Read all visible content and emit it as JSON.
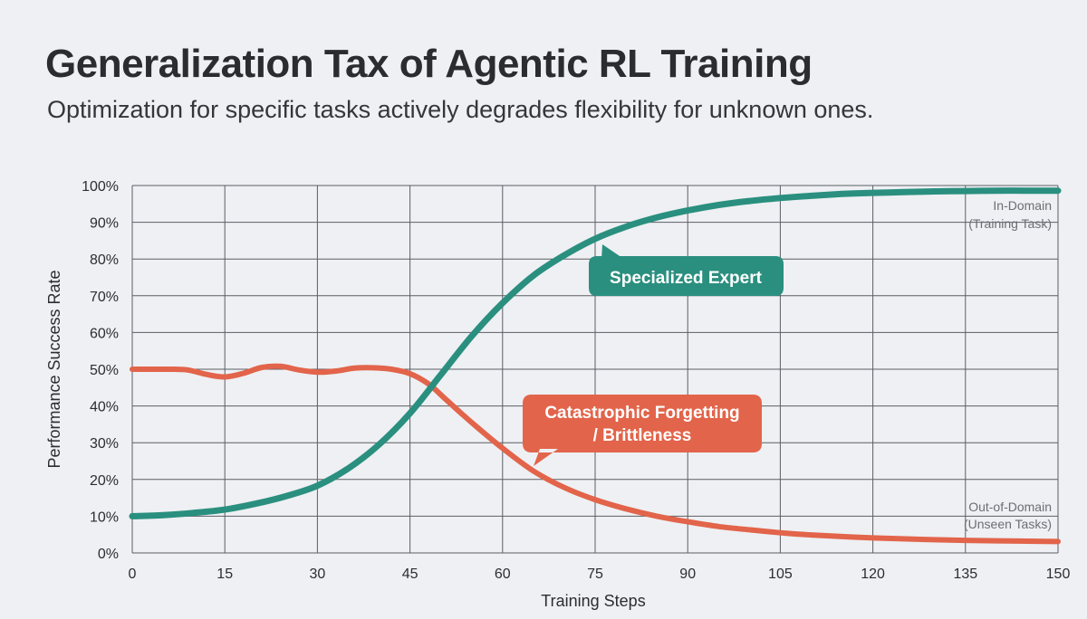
{
  "title": "Generalization Tax of Agentic RL Training",
  "subtitle": "Optimization for specific tasks actively degrades flexibility for unknown ones.",
  "chart_data": {
    "type": "line",
    "xlabel": "Training Steps",
    "ylabel": "Performance Success Rate",
    "xlim": [
      0,
      150
    ],
    "ylim": [
      0,
      100
    ],
    "x_ticks": [
      0,
      15,
      30,
      45,
      60,
      75,
      90,
      105,
      120,
      135,
      150
    ],
    "y_ticks": [
      "0%",
      "10%",
      "20%",
      "30%",
      "40%",
      "50%",
      "60%",
      "70%",
      "80%",
      "90%",
      "100%"
    ],
    "grid": true,
    "series": [
      {
        "name": "In-Domain (Training Task)",
        "label_lines": [
          "In-Domain",
          "(Training Task)"
        ],
        "color": "#2a8f7f",
        "x": [
          0,
          5,
          10,
          15,
          20,
          25,
          30,
          35,
          40,
          45,
          50,
          55,
          60,
          65,
          70,
          75,
          80,
          85,
          90,
          95,
          100,
          105,
          110,
          115,
          120,
          125,
          130,
          135,
          140,
          145,
          150
        ],
        "y": [
          10,
          10.3,
          10.9,
          11.8,
          13.4,
          15.5,
          18.3,
          23,
          29.5,
          38,
          48.5,
          59,
          68,
          75.5,
          81,
          85.5,
          88.8,
          91.3,
          93.2,
          94.7,
          95.8,
          96.6,
          97.2,
          97.7,
          98,
          98.2,
          98.4,
          98.5,
          98.6,
          98.6,
          98.6
        ]
      },
      {
        "name": "Out-of-Domain (Unseen Tasks)",
        "label_lines": [
          "Out-of-Domain",
          "(Unseen Tasks)"
        ],
        "color": "#e2644a",
        "x": [
          0,
          3,
          6,
          9,
          12,
          15,
          18,
          21,
          24,
          27,
          30,
          33,
          36,
          39,
          42,
          45,
          48,
          51,
          55,
          60,
          65,
          70,
          75,
          80,
          85,
          90,
          95,
          100,
          105,
          110,
          120,
          130,
          140,
          150
        ],
        "y": [
          50,
          50,
          50,
          49.8,
          48.6,
          47.9,
          48.9,
          50.5,
          50.8,
          49.8,
          49.2,
          49.5,
          50.3,
          50.4,
          50,
          48.8,
          46,
          41.5,
          35.5,
          28.5,
          22.3,
          17.8,
          14.5,
          12,
          10,
          8.5,
          7.2,
          6.3,
          5.5,
          4.9,
          4.1,
          3.6,
          3.3,
          3.1
        ]
      }
    ],
    "annotations": [
      {
        "text": "Specialized Expert",
        "color": "#2a8f7f"
      },
      {
        "text_lines": [
          "Catastrophic Forgetting",
          "/ Brittleness"
        ],
        "color": "#e2644a"
      }
    ]
  }
}
